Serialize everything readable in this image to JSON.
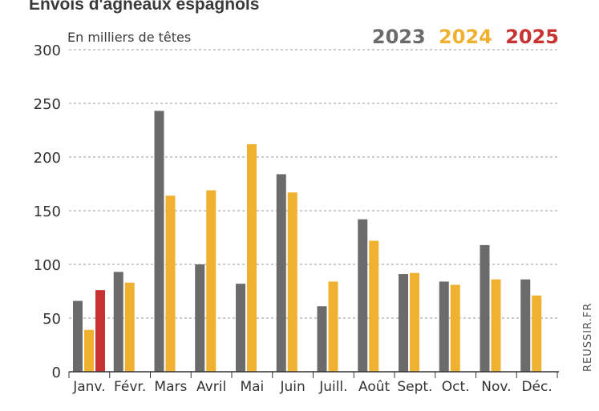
{
  "chart_data": {
    "type": "bar",
    "title": "Envois d'agneaux espagnols",
    "unit_label": "En milliers de têtes",
    "source": "REUSSIR.FR",
    "categories": [
      "Janv.",
      "Févr.",
      "Mars",
      "Avril",
      "Mai",
      "Juin",
      "Juill.",
      "Août",
      "Sept.",
      "Oct.",
      "Nov.",
      "Déc."
    ],
    "series": [
      {
        "name": "2023",
        "color": "#6b6b6b",
        "values": [
          66,
          93,
          243,
          100,
          82,
          184,
          61,
          142,
          91,
          84,
          118,
          86
        ]
      },
      {
        "name": "2024",
        "color": "#f0b030",
        "values": [
          39,
          83,
          164,
          169,
          212,
          167,
          84,
          122,
          92,
          81,
          86,
          71
        ]
      },
      {
        "name": "2025",
        "color": "#c83232",
        "values": [
          76,
          null,
          null,
          null,
          null,
          null,
          null,
          null,
          null,
          null,
          null,
          null
        ]
      }
    ],
    "ylim": [
      0,
      300
    ],
    "yticks": [
      0,
      50,
      100,
      150,
      200,
      250,
      300
    ],
    "grid": "horizontal-dashed",
    "legend_position": "top-right"
  }
}
